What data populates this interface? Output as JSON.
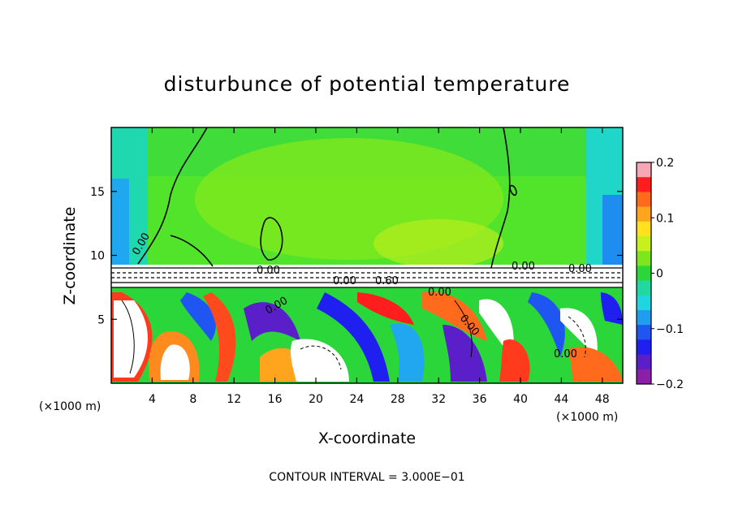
{
  "chart_data": {
    "type": "heatmap",
    "title": "disturbunce of potential temperature",
    "xlabel": "X-coordinate",
    "ylabel": "Z-coordinate",
    "x_unit": "(×1000 m)",
    "y_unit": "(×1000 m)",
    "xlim": [
      0,
      50
    ],
    "ylim": [
      0,
      20
    ],
    "x_ticks": [
      4,
      8,
      12,
      16,
      20,
      24,
      28,
      32,
      36,
      40,
      44,
      48
    ],
    "y_ticks": [
      5,
      10,
      15
    ],
    "colorbar": {
      "min": -0.2,
      "max": 0.2,
      "tick_labels": [
        "0.2",
        "0.1",
        "0",
        "−0.1",
        "−0.2"
      ],
      "tick_values": [
        0.2,
        0.1,
        0,
        -0.1,
        -0.2
      ],
      "colors": [
        "#f7a6b4",
        "#ff1d1d",
        "#ff6a1d",
        "#ffa51d",
        "#ffe21d",
        "#c8f01d",
        "#7ee61d",
        "#2bd63a",
        "#1fd9a0",
        "#1fd5e0",
        "#1f9ef0",
        "#1f55f0",
        "#1f1ff0",
        "#5a1fc8",
        "#8b1fa8"
      ]
    },
    "contour_labels": [
      "0.00",
      "0.00",
      "0.00",
      "0.00",
      "0.00",
      "0.60",
      "0.00",
      "0.00",
      "0.00",
      "0.00"
    ],
    "contour_interval_label": "CONTOUR INTERVAL = 3.000E−01"
  }
}
